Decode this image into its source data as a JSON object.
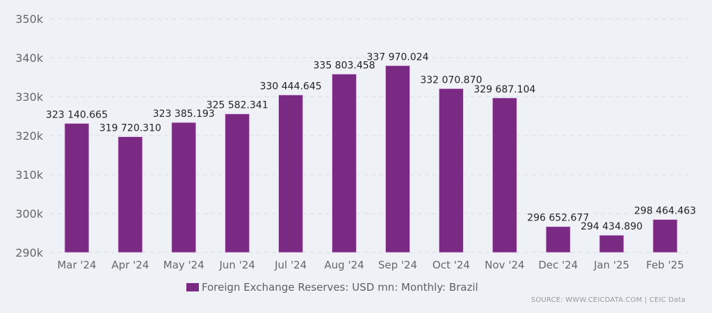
{
  "chart_data": {
    "type": "bar",
    "title": "",
    "xlabel": "",
    "ylabel": "",
    "categories": [
      "Mar '24",
      "Apr '24",
      "May '24",
      "Jun '24",
      "Jul '24",
      "Aug '24",
      "Sep '24",
      "Oct '24",
      "Nov '24",
      "Dec '24",
      "Jan '25",
      "Feb '25"
    ],
    "values": [
      323140.665,
      319720.31,
      323385.193,
      325582.341,
      330444.645,
      335803.458,
      337970.024,
      332070.87,
      329687.104,
      296652.677,
      294434.89,
      298464.463
    ],
    "data_labels": [
      "323 140.665",
      "319 720.310",
      "323 385.193",
      "325 582.341",
      "330 444.645",
      "335 803.458",
      "337 970.024",
      "332 070.870",
      "329 687.104",
      "296 652.677",
      "294 434.890",
      "298 464.463"
    ],
    "ylim": [
      290000,
      350000
    ],
    "yticks": [
      290000,
      300000,
      310000,
      320000,
      330000,
      340000,
      350000
    ],
    "ytick_labels": [
      "290k",
      "300k",
      "310k",
      "320k",
      "330k",
      "340k",
      "350k"
    ],
    "grid": true,
    "series_name": "Foreign Exchange Reserves: USD mn: Monthly: Brazil",
    "legend_position": "bottom-center",
    "bar_color": "#7b2a83"
  },
  "legend": {
    "label": "Foreign Exchange Reserves: USD mn: Monthly: Brazil"
  },
  "source": {
    "text": "SOURCE: WWW.CEICDATA.COM | CEIC Data"
  }
}
